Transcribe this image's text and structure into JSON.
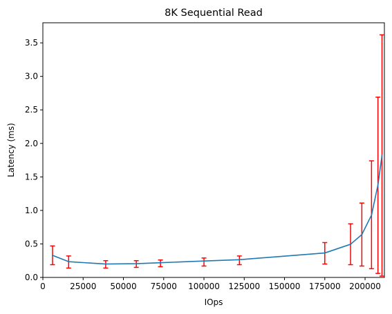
{
  "chart_data": {
    "type": "line",
    "title": "8K  Sequential Read",
    "xlabel": "IOps",
    "ylabel": "Latency (ms)",
    "xlim": [
      0,
      212000
    ],
    "ylim": [
      0,
      3.8
    ],
    "x_ticks": [
      0,
      25000,
      50000,
      75000,
      100000,
      125000,
      150000,
      175000,
      200000
    ],
    "x_tick_labels": [
      "0",
      "25000",
      "50000",
      "75000",
      "100000",
      "125000",
      "150000",
      "175000",
      "200000"
    ],
    "y_ticks": [
      0,
      0.5,
      1.0,
      1.5,
      2.0,
      2.5,
      3.0,
      3.5
    ],
    "y_tick_labels": [
      "0.0",
      "0.5",
      "1.0",
      "1.5",
      "2.0",
      "2.5",
      "3.0",
      "3.5"
    ],
    "grid": false,
    "series": [
      {
        "color": "#1f77b4",
        "points": [
          {
            "x": 6000,
            "y": 0.33
          },
          {
            "x": 16000,
            "y": 0.235
          },
          {
            "x": 39000,
            "y": 0.2
          },
          {
            "x": 58000,
            "y": 0.205
          },
          {
            "x": 73000,
            "y": 0.22
          },
          {
            "x": 100000,
            "y": 0.245
          },
          {
            "x": 122000,
            "y": 0.265
          },
          {
            "x": 175000,
            "y": 0.365
          },
          {
            "x": 191000,
            "y": 0.495
          },
          {
            "x": 198000,
            "y": 0.64
          },
          {
            "x": 204000,
            "y": 0.93
          },
          {
            "x": 208000,
            "y": 1.38
          },
          {
            "x": 210500,
            "y": 1.82
          }
        ]
      }
    ],
    "error_bars": {
      "color": "#ff0000",
      "items": [
        {
          "x": 6000,
          "low": 0.19,
          "high": 0.47
        },
        {
          "x": 16000,
          "low": 0.14,
          "high": 0.32
        },
        {
          "x": 39000,
          "low": 0.14,
          "high": 0.25
        },
        {
          "x": 58000,
          "low": 0.15,
          "high": 0.25
        },
        {
          "x": 73000,
          "low": 0.16,
          "high": 0.26
        },
        {
          "x": 100000,
          "low": 0.17,
          "high": 0.29
        },
        {
          "x": 122000,
          "low": 0.19,
          "high": 0.32
        },
        {
          "x": 175000,
          "low": 0.2,
          "high": 0.52
        },
        {
          "x": 191000,
          "low": 0.19,
          "high": 0.8
        },
        {
          "x": 198000,
          "low": 0.17,
          "high": 1.11
        },
        {
          "x": 204000,
          "low": 0.13,
          "high": 1.74
        },
        {
          "x": 208000,
          "low": 0.06,
          "high": 2.69
        },
        {
          "x": 210500,
          "low": 0.02,
          "high": 3.62
        }
      ]
    }
  }
}
